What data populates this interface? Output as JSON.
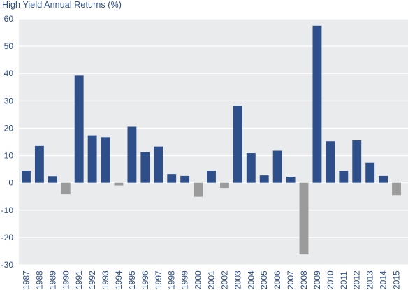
{
  "chart_data": {
    "type": "bar",
    "title": "High Yield Annual Returns (%)",
    "categories": [
      "1987",
      "1988",
      "1989",
      "1990",
      "1991",
      "1992",
      "1993",
      "1994",
      "1995",
      "1996",
      "1997",
      "1998",
      "1999",
      "2000",
      "2001",
      "2002",
      "2003",
      "2004",
      "2005",
      "2006",
      "2007",
      "2008",
      "2009",
      "2010",
      "2011",
      "2012",
      "2013",
      "2014",
      "2015"
    ],
    "values": [
      4.5,
      13.5,
      2.4,
      -4.2,
      39.2,
      17.4,
      16.7,
      -1.0,
      20.5,
      11.3,
      13.3,
      3.2,
      2.5,
      -5.1,
      4.5,
      -1.9,
      28.2,
      10.9,
      2.7,
      11.8,
      2.2,
      -26.2,
      57.5,
      15.2,
      4.4,
      15.6,
      7.4,
      2.5,
      -4.5
    ],
    "ylim": [
      -30,
      60
    ],
    "yticks": [
      -30,
      -20,
      -10,
      0,
      10,
      20,
      30,
      40,
      50,
      60
    ],
    "xlabel": "",
    "ylabel": "",
    "grid": true,
    "colors": {
      "positive": "#2e4f8a",
      "negative": "#9b9b9b",
      "plot_background": "#e9ebed",
      "gridline": "#ffffff",
      "text": "#2e4f8a"
    }
  }
}
